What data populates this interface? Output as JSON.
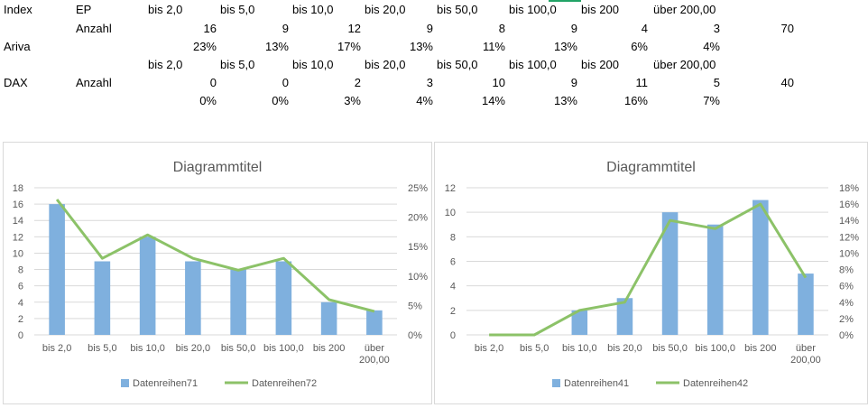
{
  "sheet": {
    "row1": {
      "a": "Index",
      "b": "EP",
      "c": "bis 2,0",
      "d": "bis 5,0",
      "e": "bis 10,0",
      "f": "bis 20,0",
      "g": "bis 50,0",
      "h": "bis 100,0",
      "i": "bis 200",
      "j": "über 200,00"
    },
    "row2": {
      "b": "Anzahl",
      "c": "16",
      "d": "9",
      "e": "12",
      "f": "9",
      "g": "8",
      "h": "9",
      "i": "4",
      "j": "3",
      "k": "70"
    },
    "row3": {
      "a": "Ariva",
      "c": "23%",
      "d": "13%",
      "e": "17%",
      "f": "13%",
      "g": "11%",
      "h": "13%",
      "i": "6%",
      "j": "4%"
    },
    "row4": {
      "c": "bis 2,0",
      "d": "bis 5,0",
      "e": "bis 10,0",
      "f": "bis 20,0",
      "g": "bis 50,0",
      "h": "bis 100,0",
      "i": "bis 200",
      "j": "über 200,00"
    },
    "row5": {
      "a": "DAX",
      "b": "Anzahl",
      "c": "0",
      "d": "0",
      "e": "2",
      "f": "3",
      "g": "10",
      "h": "9",
      "i": "11",
      "j": "5",
      "k": "40"
    },
    "row6": {
      "c": "0%",
      "d": "0%",
      "e": "3%",
      "f": "4%",
      "g": "14%",
      "h": "13%",
      "i": "16%",
      "j": "7%"
    }
  },
  "colors": {
    "bar": "#7fb0de",
    "line": "#8cc268",
    "grid": "#d9d9d9",
    "axis_text": "#595959"
  },
  "chart_data": [
    {
      "type": "bar",
      "title": "Diagrammtitel",
      "categories": [
        "bis 2,0",
        "bis 5,0",
        "bis 10,0",
        "bis 20,0",
        "bis 50,0",
        "bis 100,0",
        "bis 200",
        "über 200,00"
      ],
      "series": [
        {
          "name": "Datenreihen71",
          "type": "bar",
          "axis": "left",
          "values": [
            16,
            9,
            12,
            9,
            8,
            9,
            4,
            3
          ]
        },
        {
          "name": "Datenreihen72",
          "type": "line",
          "axis": "right",
          "values": [
            0.23,
            0.13,
            0.17,
            0.13,
            0.11,
            0.13,
            0.06,
            0.04
          ]
        }
      ],
      "ylim": [
        0,
        18
      ],
      "yticks": [
        "0",
        "2",
        "4",
        "6",
        "8",
        "10",
        "12",
        "14",
        "16",
        "18"
      ],
      "y2lim": [
        0,
        0.25
      ],
      "y2ticks": [
        "0%",
        "5%",
        "10%",
        "15%",
        "20%",
        "25%"
      ],
      "grid": true,
      "legend": "bottom"
    },
    {
      "type": "bar",
      "title": "Diagrammtitel",
      "categories": [
        "bis 2,0",
        "bis 5,0",
        "bis 10,0",
        "bis 20,0",
        "bis 50,0",
        "bis 100,0",
        "bis 200",
        "über 200,00"
      ],
      "series": [
        {
          "name": "Datenreihen41",
          "type": "bar",
          "axis": "left",
          "values": [
            0,
            0,
            2,
            3,
            10,
            9,
            11,
            5
          ]
        },
        {
          "name": "Datenreihen42",
          "type": "line",
          "axis": "right",
          "values": [
            0,
            0,
            0.03,
            0.04,
            0.14,
            0.13,
            0.16,
            0.07
          ]
        }
      ],
      "ylim": [
        0,
        12
      ],
      "yticks": [
        "0",
        "2",
        "4",
        "6",
        "8",
        "10",
        "12"
      ],
      "y2lim": [
        0,
        0.18
      ],
      "y2ticks": [
        "0%",
        "2%",
        "4%",
        "6%",
        "8%",
        "10%",
        "12%",
        "14%",
        "16%",
        "18%"
      ],
      "grid": true,
      "legend": "bottom"
    }
  ]
}
